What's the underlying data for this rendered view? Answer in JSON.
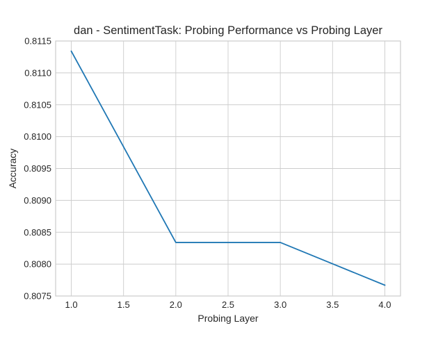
{
  "chart_data": {
    "type": "line",
    "title": "dan - SentimentTask: Probing Performance vs Probing Layer",
    "xlabel": "Probing Layer",
    "ylabel": "Accuracy",
    "xlim": [
      0.85,
      4.15
    ],
    "ylim": [
      0.8075,
      0.8115
    ],
    "xticks": [
      "1.0",
      "1.5",
      "2.0",
      "2.5",
      "3.0",
      "3.5",
      "4.0"
    ],
    "yticks": [
      "0.8075",
      "0.8080",
      "0.8085",
      "0.8090",
      "0.8095",
      "0.8100",
      "0.8105",
      "0.8110",
      "0.8115"
    ],
    "grid": true,
    "series": [
      {
        "color": "#1f77b4",
        "x": [
          1.0,
          2.0,
          3.0,
          4.0
        ],
        "y": [
          0.81134,
          0.80834,
          0.80834,
          0.80767
        ]
      }
    ]
  }
}
